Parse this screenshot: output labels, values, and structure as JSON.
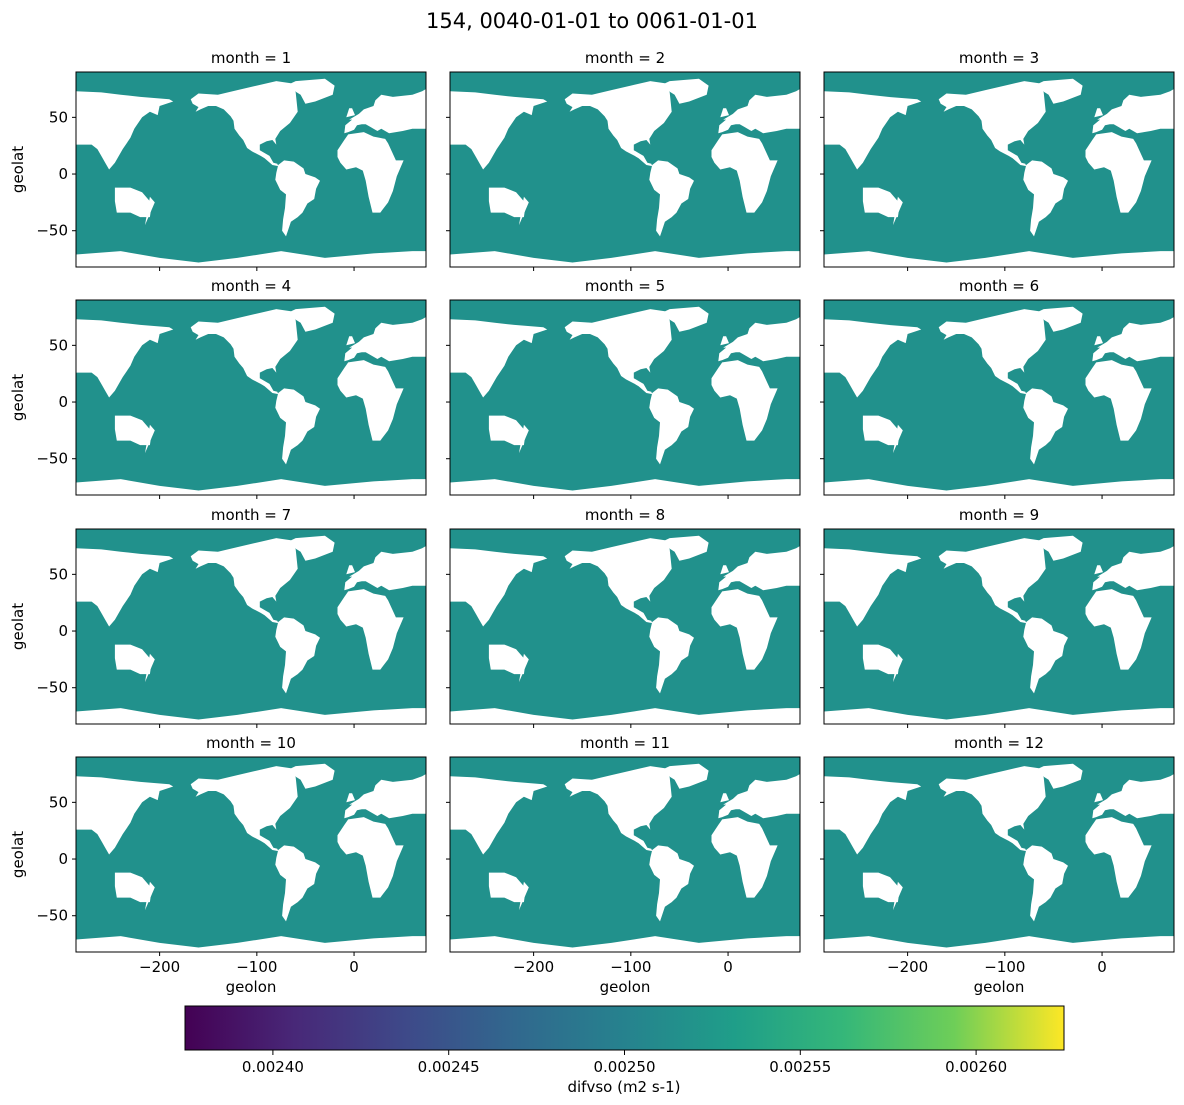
{
  "figure": {
    "suptitle": "154, 0040-01-01 to 0061-01-01"
  },
  "chart_data": {
    "type": "heatmap",
    "title": "154, 0040-01-01 to 0061-01-01",
    "xlabel": "geolon",
    "ylabel": "geolat",
    "xlim": [
      -286,
      74
    ],
    "ylim": [
      -82,
      90
    ],
    "x_ticks": [
      -200,
      -100,
      0
    ],
    "x_tick_labels": [
      "−200",
      "−100",
      "0"
    ],
    "y_ticks": [
      50,
      0,
      -50
    ],
    "y_tick_labels": [
      "50",
      "0",
      "−50"
    ],
    "panels": [
      {
        "title": "month = 1",
        "value": 0.0025
      },
      {
        "title": "month = 2",
        "value": 0.0025
      },
      {
        "title": "month = 3",
        "value": 0.0025
      },
      {
        "title": "month = 4",
        "value": 0.0025
      },
      {
        "title": "month = 5",
        "value": 0.0025
      },
      {
        "title": "month = 6",
        "value": 0.0025
      },
      {
        "title": "month = 7",
        "value": 0.0025
      },
      {
        "title": "month = 8",
        "value": 0.0025
      },
      {
        "title": "month = 9",
        "value": 0.0025
      },
      {
        "title": "month = 10",
        "value": 0.0025
      },
      {
        "title": "month = 11",
        "value": 0.0025
      },
      {
        "title": "month = 12",
        "value": 0.0025
      }
    ],
    "colorbar": {
      "label": "difvso (m2 s-1)",
      "colormap": "viridis",
      "vmin": 0.002375,
      "vmax": 0.002625,
      "ticks": [
        0.0024,
        0.00245,
        0.0025,
        0.00255,
        0.0026
      ],
      "tick_labels": [
        "0.00240",
        "0.00245",
        "0.00250",
        "0.00255",
        "0.00260"
      ]
    },
    "ocean_color": "#21918c",
    "land_color": "#ffffff"
  }
}
